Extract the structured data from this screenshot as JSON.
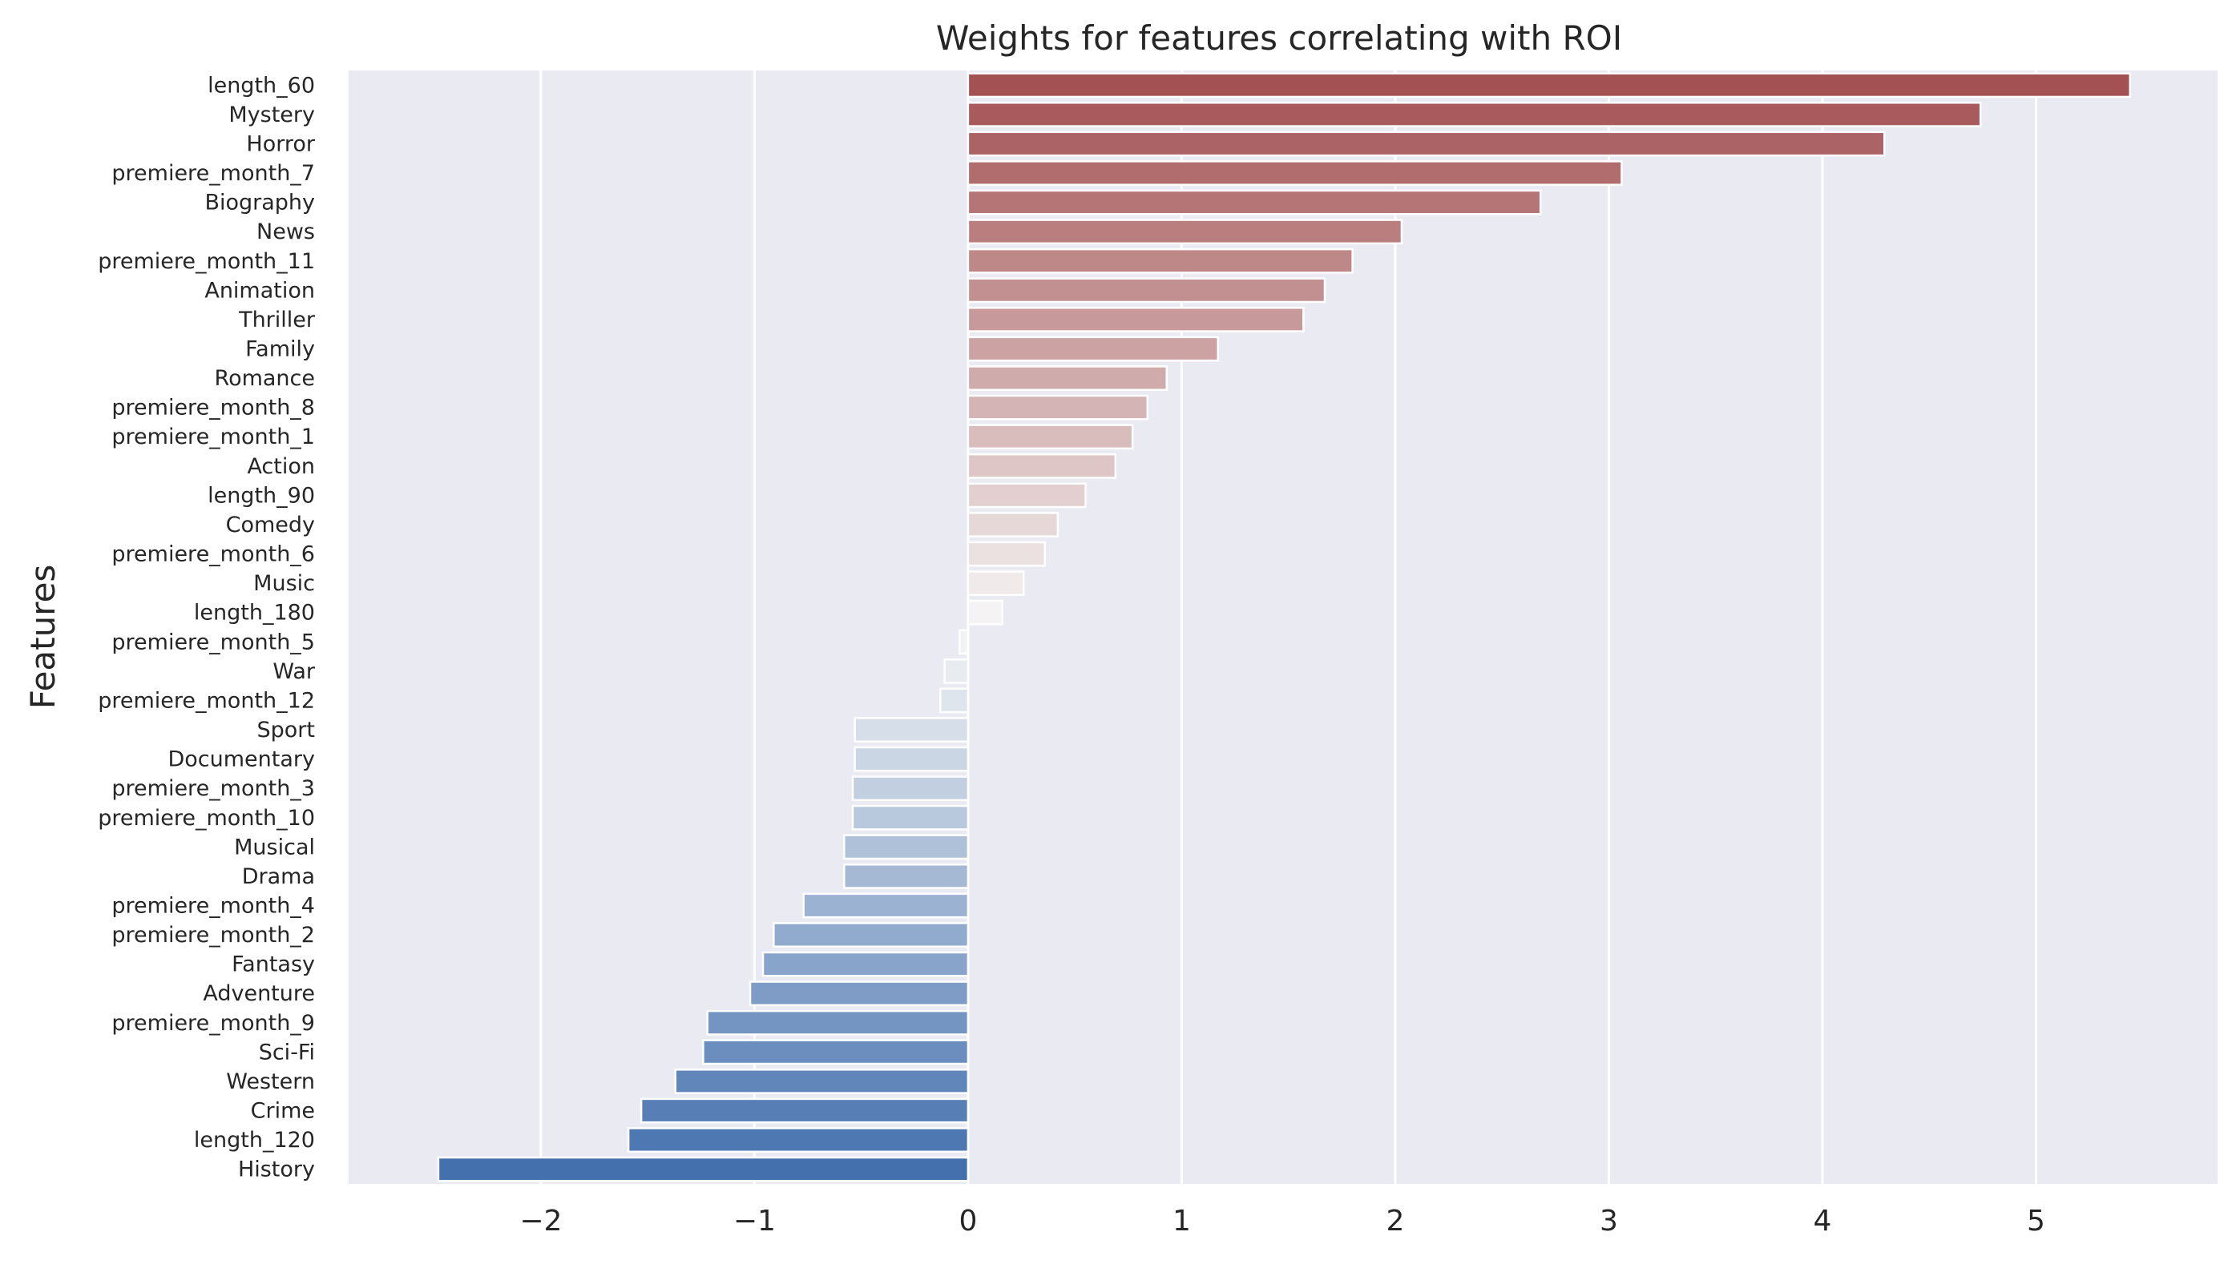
{
  "chart_data": {
    "type": "bar",
    "orientation": "horizontal",
    "title": "Weights for features correlating with ROI",
    "xlabel": "",
    "ylabel": "Features",
    "xlim": [
      -2.9,
      5.85
    ],
    "xticks": [
      -2,
      -1,
      0,
      1,
      2,
      3,
      4,
      5
    ],
    "xtick_labels": [
      "−2",
      "−1",
      "0",
      "1",
      "2",
      "3",
      "4",
      "5"
    ],
    "grid": true,
    "legend": "none",
    "colors": {
      "background": "#eaeaf2",
      "grid": "#ffffff",
      "positive": "#a35153",
      "negative": "#4471ae",
      "neutral": "#f7f7f7"
    },
    "categories": [
      "length_60",
      "Mystery",
      "Horror",
      "premiere_month_7",
      "Biography",
      "News",
      "premiere_month_11",
      "Animation",
      "Thriller",
      "Family",
      "Romance",
      "premiere_month_8",
      "premiere_month_1",
      "Action",
      "length_90",
      "Comedy",
      "premiere_month_6",
      "Music",
      "length_180",
      "premiere_month_5",
      "War",
      "premiere_month_12",
      "Sport",
      "Documentary",
      "premiere_month_3",
      "premiere_month_10",
      "Musical",
      "Drama",
      "premiere_month_4",
      "premiere_month_2",
      "Fantasy",
      "Adventure",
      "premiere_month_9",
      "Sci-Fi",
      "Western",
      "Crime",
      "length_120",
      "History"
    ],
    "values": [
      5.44,
      4.74,
      4.29,
      3.06,
      2.68,
      2.03,
      1.8,
      1.67,
      1.57,
      1.17,
      0.93,
      0.84,
      0.77,
      0.69,
      0.55,
      0.42,
      0.36,
      0.26,
      0.16,
      -0.04,
      -0.11,
      -0.13,
      -0.53,
      -0.53,
      -0.54,
      -0.54,
      -0.58,
      -0.58,
      -0.77,
      -0.91,
      -0.96,
      -1.02,
      -1.22,
      -1.24,
      -1.37,
      -1.53,
      -1.59,
      -2.48
    ]
  }
}
